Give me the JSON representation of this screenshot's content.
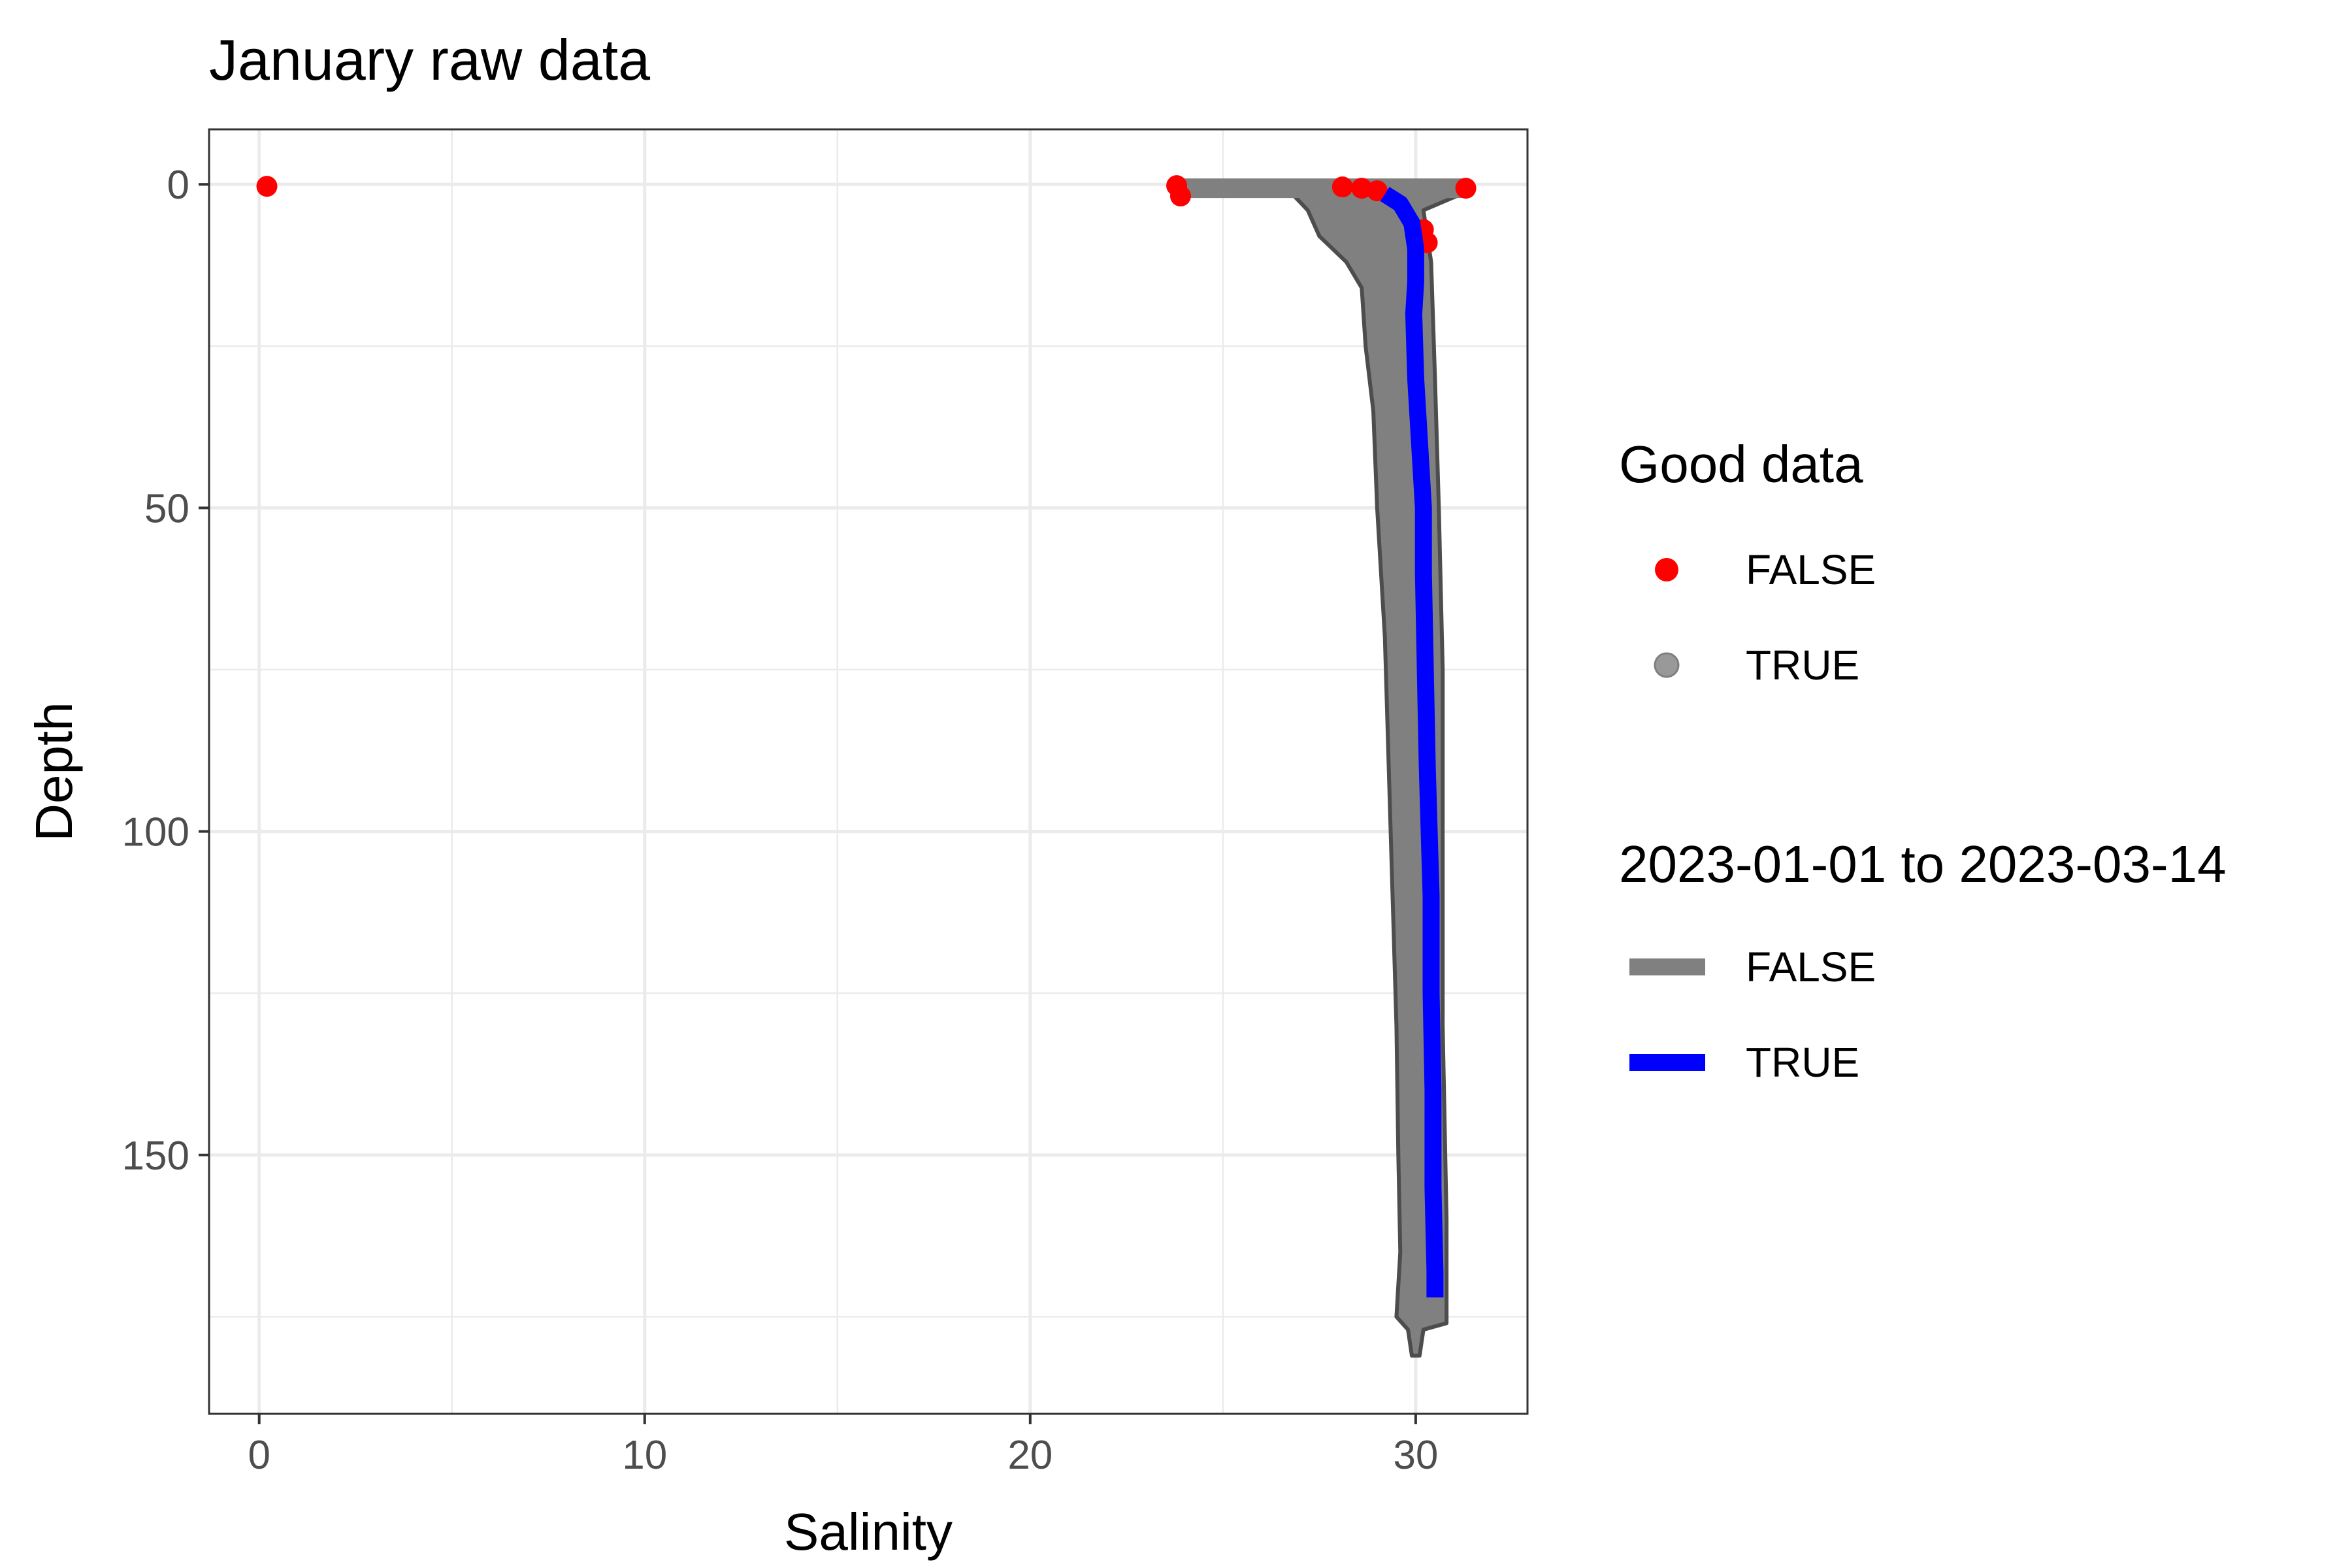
{
  "chart_data": {
    "type": "line",
    "title": "January raw data",
    "xlabel": "Salinity",
    "ylabel": "Depth",
    "xlim": [
      -1.3,
      32.9
    ],
    "ylim": [
      190,
      -8.5
    ],
    "y_reversed": true,
    "x_ticks": [
      0,
      10,
      20,
      30
    ],
    "y_ticks": [
      0,
      50,
      100,
      150
    ],
    "grid": true,
    "legend_placement": "right",
    "colors": {
      "bad_point": "#ff0000",
      "good_point": "#808080",
      "line_false": "#808080",
      "line_true": "#0000ff",
      "panel_border": "#333333",
      "grid": "#ebebeb"
    },
    "legends": [
      {
        "title": "Good data",
        "entries": [
          {
            "label": "FALSE",
            "kind": "point",
            "color": "#ff0000"
          },
          {
            "label": "TRUE",
            "kind": "point",
            "color": "#999999"
          }
        ]
      },
      {
        "title": "2023-01-01 to 2023-03-14",
        "entries": [
          {
            "label": "FALSE",
            "kind": "line",
            "color": "#808080"
          },
          {
            "label": "TRUE",
            "kind": "line",
            "color": "#0000ff"
          }
        ]
      }
    ],
    "series": [
      {
        "good_data": false,
        "kind": "points",
        "points": [
          {
            "x": 0.2,
            "y": 0.3
          },
          {
            "x": 23.8,
            "y": 0.2
          },
          {
            "x": 23.9,
            "y": 1.8
          },
          {
            "x": 28.1,
            "y": 0.4
          },
          {
            "x": 28.6,
            "y": 0.6
          },
          {
            "x": 29.0,
            "y": 1.0
          },
          {
            "x": 30.2,
            "y": 7.0
          },
          {
            "x": 30.3,
            "y": 9.0
          },
          {
            "x": 31.3,
            "y": 0.6
          }
        ]
      },
      {
        "good_data": true,
        "kind": "envelope",
        "left_edge": [
          {
            "x": 23.8,
            "y": 0.5
          },
          {
            "x": 26.8,
            "y": 1.5
          },
          {
            "x": 27.2,
            "y": 4
          },
          {
            "x": 27.5,
            "y": 8
          },
          {
            "x": 28.2,
            "y": 12
          },
          {
            "x": 28.6,
            "y": 16
          },
          {
            "x": 28.7,
            "y": 25
          },
          {
            "x": 28.9,
            "y": 35
          },
          {
            "x": 29.0,
            "y": 50
          },
          {
            "x": 29.2,
            "y": 70
          },
          {
            "x": 29.3,
            "y": 90
          },
          {
            "x": 29.4,
            "y": 110
          },
          {
            "x": 29.5,
            "y": 130
          },
          {
            "x": 29.55,
            "y": 150
          },
          {
            "x": 29.6,
            "y": 165
          },
          {
            "x": 29.5,
            "y": 175
          },
          {
            "x": 29.8,
            "y": 177
          },
          {
            "x": 29.9,
            "y": 181
          }
        ],
        "right_edge": [
          {
            "x": 30.1,
            "y": 181
          },
          {
            "x": 30.2,
            "y": 177
          },
          {
            "x": 30.8,
            "y": 176
          },
          {
            "x": 30.8,
            "y": 160
          },
          {
            "x": 30.7,
            "y": 130
          },
          {
            "x": 30.7,
            "y": 100
          },
          {
            "x": 30.7,
            "y": 75
          },
          {
            "x": 30.6,
            "y": 50
          },
          {
            "x": 30.5,
            "y": 30
          },
          {
            "x": 30.4,
            "y": 12
          },
          {
            "x": 30.2,
            "y": 4
          },
          {
            "x": 31.3,
            "y": 1.2
          },
          {
            "x": 31.2,
            "y": 0.4
          },
          {
            "x": 29.0,
            "y": -0.2
          },
          {
            "x": 26.5,
            "y": -0.3
          },
          {
            "x": 23.8,
            "y": -0.1
          }
        ]
      },
      {
        "name": "TRUE",
        "kind": "line",
        "color": "#0000ff",
        "points": [
          {
            "x": 29.2,
            "y": 1.5
          },
          {
            "x": 29.6,
            "y": 3
          },
          {
            "x": 29.9,
            "y": 6
          },
          {
            "x": 30.0,
            "y": 10
          },
          {
            "x": 30.0,
            "y": 15
          },
          {
            "x": 29.95,
            "y": 20
          },
          {
            "x": 30.0,
            "y": 30
          },
          {
            "x": 30.1,
            "y": 40
          },
          {
            "x": 30.2,
            "y": 50
          },
          {
            "x": 30.2,
            "y": 60
          },
          {
            "x": 30.25,
            "y": 75
          },
          {
            "x": 30.3,
            "y": 90
          },
          {
            "x": 30.35,
            "y": 100
          },
          {
            "x": 30.4,
            "y": 110
          },
          {
            "x": 30.4,
            "y": 125
          },
          {
            "x": 30.45,
            "y": 140
          },
          {
            "x": 30.45,
            "y": 155
          },
          {
            "x": 30.5,
            "y": 168
          },
          {
            "x": 30.5,
            "y": 172
          }
        ]
      }
    ]
  }
}
